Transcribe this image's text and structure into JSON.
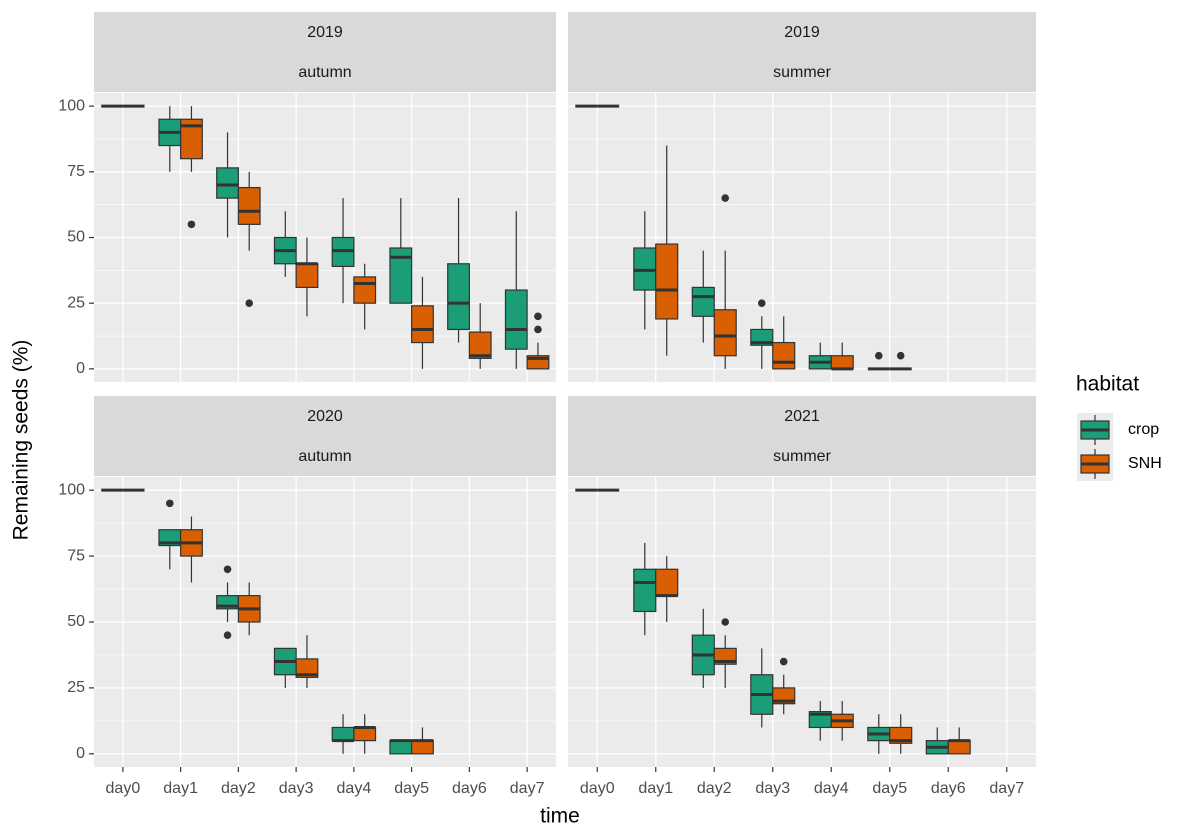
{
  "axis_labels": {
    "x": "time",
    "y": "Remaining seeds (%)"
  },
  "legend": {
    "title": "habitat"
  },
  "chart_data": [
    {
      "type": "box",
      "strip": [
        "2019",
        "autumn"
      ],
      "categories": [
        "day0",
        "day1",
        "day2",
        "day3",
        "day4",
        "day5",
        "day6",
        "day7"
      ],
      "ylim": [
        -5,
        105
      ],
      "yticks": [
        0,
        25,
        50,
        75,
        100
      ],
      "grid": true,
      "minor_grid": true,
      "series": [
        {
          "name": "crop",
          "color": "#1b9e77",
          "boxes": [
            {
              "min": 100,
              "q1": 100,
              "median": 100,
              "q3": 100,
              "max": 100,
              "outliers": []
            },
            {
              "min": 75,
              "q1": 85,
              "median": 90,
              "q3": 95,
              "max": 100,
              "outliers": []
            },
            {
              "min": 50,
              "q1": 65,
              "median": 70,
              "q3": 76.5,
              "max": 90,
              "outliers": []
            },
            {
              "min": 35,
              "q1": 40,
              "median": 45,
              "q3": 50,
              "max": 60,
              "outliers": []
            },
            {
              "min": 25,
              "q1": 39,
              "median": 45,
              "q3": 50,
              "max": 65,
              "outliers": []
            },
            {
              "min": 25,
              "q1": 25,
              "median": 42.5,
              "q3": 46,
              "max": 65,
              "outliers": []
            },
            {
              "min": 10,
              "q1": 15,
              "median": 25,
              "q3": 40,
              "max": 65,
              "outliers": []
            },
            {
              "min": 0,
              "q1": 7.5,
              "median": 15,
              "q3": 30,
              "max": 60,
              "outliers": []
            }
          ]
        },
        {
          "name": "SNH",
          "color": "#d95f02",
          "boxes": [
            {
              "min": 100,
              "q1": 100,
              "median": 100,
              "q3": 100,
              "max": 100,
              "outliers": []
            },
            {
              "min": 75,
              "q1": 80,
              "median": 92.5,
              "q3": 95,
              "max": 100,
              "outliers": [
                55
              ]
            },
            {
              "min": 45,
              "q1": 55,
              "median": 60,
              "q3": 69,
              "max": 75,
              "outliers": [
                25
              ]
            },
            {
              "min": 20,
              "q1": 31,
              "median": 40,
              "q3": 40,
              "max": 50,
              "outliers": []
            },
            {
              "min": 15,
              "q1": 25,
              "median": 32.5,
              "q3": 35,
              "max": 40,
              "outliers": []
            },
            {
              "min": 0,
              "q1": 10,
              "median": 15,
              "q3": 24,
              "max": 35,
              "outliers": []
            },
            {
              "min": 0,
              "q1": 4,
              "median": 5,
              "q3": 14,
              "max": 25,
              "outliers": []
            },
            {
              "min": 0,
              "q1": 0,
              "median": 4,
              "q3": 5,
              "max": 10,
              "outliers": [
                15,
                20
              ]
            }
          ]
        }
      ]
    },
    {
      "type": "box",
      "strip": [
        "2019",
        "summer"
      ],
      "categories": [
        "day0",
        "day1",
        "day2",
        "day3",
        "day4",
        "day5",
        "day6",
        "day7"
      ],
      "ylim": [
        -5,
        105
      ],
      "yticks": [
        0,
        25,
        50,
        75,
        100
      ],
      "grid": true,
      "minor_grid": true,
      "series": [
        {
          "name": "crop",
          "color": "#1b9e77",
          "boxes": [
            {
              "min": 100,
              "q1": 100,
              "median": 100,
              "q3": 100,
              "max": 100,
              "outliers": []
            },
            {
              "min": 15,
              "q1": 30,
              "median": 37.5,
              "q3": 46,
              "max": 60,
              "outliers": []
            },
            {
              "min": 10,
              "q1": 20,
              "median": 27.5,
              "q3": 31,
              "max": 45,
              "outliers": []
            },
            {
              "min": 0,
              "q1": 9,
              "median": 10,
              "q3": 15,
              "max": 20,
              "outliers": [
                25
              ]
            },
            {
              "min": 0,
              "q1": 0,
              "median": 2.5,
              "q3": 5,
              "max": 10,
              "outliers": []
            },
            {
              "min": 0,
              "q1": 0,
              "median": 0,
              "q3": 0,
              "max": 0,
              "outliers": [
                5
              ]
            },
            null,
            null
          ]
        },
        {
          "name": "SNH",
          "color": "#d95f02",
          "boxes": [
            {
              "min": 100,
              "q1": 100,
              "median": 100,
              "q3": 100,
              "max": 100,
              "outliers": []
            },
            {
              "min": 5,
              "q1": 19,
              "median": 30,
              "q3": 47.5,
              "max": 85,
              "outliers": []
            },
            {
              "min": 0,
              "q1": 5,
              "median": 12.5,
              "q3": 22.5,
              "max": 45,
              "outliers": [
                65
              ]
            },
            {
              "min": 0,
              "q1": 0,
              "median": 2.5,
              "q3": 10,
              "max": 20,
              "outliers": []
            },
            {
              "min": 0,
              "q1": 0,
              "median": 0,
              "q3": 5,
              "max": 10,
              "outliers": []
            },
            {
              "min": 0,
              "q1": 0,
              "median": 0,
              "q3": 0,
              "max": 0,
              "outliers": [
                5
              ]
            },
            null,
            null
          ]
        }
      ]
    },
    {
      "type": "box",
      "strip": [
        "2020",
        "autumn"
      ],
      "categories": [
        "day0",
        "day1",
        "day2",
        "day3",
        "day4",
        "day5",
        "day6",
        "day7"
      ],
      "ylim": [
        -5,
        105
      ],
      "yticks": [
        0,
        25,
        50,
        75,
        100
      ],
      "grid": true,
      "minor_grid": true,
      "series": [
        {
          "name": "crop",
          "color": "#1b9e77",
          "boxes": [
            {
              "min": 100,
              "q1": 100,
              "median": 100,
              "q3": 100,
              "max": 100,
              "outliers": []
            },
            {
              "min": 70,
              "q1": 79,
              "median": 80,
              "q3": 85,
              "max": 85,
              "outliers": [
                95
              ]
            },
            {
              "min": 50,
              "q1": 55,
              "median": 56,
              "q3": 60,
              "max": 65,
              "outliers": [
                45,
                70
              ]
            },
            {
              "min": 25,
              "q1": 30,
              "median": 35,
              "q3": 40,
              "max": 40,
              "outliers": []
            },
            {
              "min": 0,
              "q1": 5,
              "median": 5,
              "q3": 10,
              "max": 15,
              "outliers": []
            },
            {
              "min": 0,
              "q1": 0,
              "median": 5,
              "q3": 5,
              "max": 5,
              "outliers": []
            },
            null,
            null
          ]
        },
        {
          "name": "SNH",
          "color": "#d95f02",
          "boxes": [
            {
              "min": 100,
              "q1": 100,
              "median": 100,
              "q3": 100,
              "max": 100,
              "outliers": []
            },
            {
              "min": 65,
              "q1": 75,
              "median": 80,
              "q3": 85,
              "max": 90,
              "outliers": []
            },
            {
              "min": 45,
              "q1": 50,
              "median": 55,
              "q3": 60,
              "max": 65,
              "outliers": []
            },
            {
              "min": 25,
              "q1": 29,
              "median": 30,
              "q3": 36,
              "max": 45,
              "outliers": []
            },
            {
              "min": 0,
              "q1": 5,
              "median": 10,
              "q3": 10,
              "max": 15,
              "outliers": []
            },
            {
              "min": 0,
              "q1": 0,
              "median": 5,
              "q3": 5,
              "max": 10,
              "outliers": []
            },
            null,
            null
          ]
        }
      ]
    },
    {
      "type": "box",
      "strip": [
        "2021",
        "summer"
      ],
      "categories": [
        "day0",
        "day1",
        "day2",
        "day3",
        "day4",
        "day5",
        "day6",
        "day7"
      ],
      "ylim": [
        -5,
        105
      ],
      "yticks": [
        0,
        25,
        50,
        75,
        100
      ],
      "grid": true,
      "minor_grid": true,
      "series": [
        {
          "name": "crop",
          "color": "#1b9e77",
          "boxes": [
            {
              "min": 100,
              "q1": 100,
              "median": 100,
              "q3": 100,
              "max": 100,
              "outliers": []
            },
            {
              "min": 45,
              "q1": 54,
              "median": 65,
              "q3": 70,
              "max": 80,
              "outliers": []
            },
            {
              "min": 25,
              "q1": 30,
              "median": 37.5,
              "q3": 45,
              "max": 55,
              "outliers": []
            },
            {
              "min": 10,
              "q1": 15,
              "median": 22.5,
              "q3": 30,
              "max": 40,
              "outliers": []
            },
            {
              "min": 5,
              "q1": 10,
              "median": 15,
              "q3": 16,
              "max": 20,
              "outliers": []
            },
            {
              "min": 0,
              "q1": 5,
              "median": 7.5,
              "q3": 10,
              "max": 15,
              "outliers": []
            },
            {
              "min": 0,
              "q1": 0,
              "median": 2.5,
              "q3": 5,
              "max": 10,
              "outliers": []
            },
            null
          ]
        },
        {
          "name": "SNH",
          "color": "#d95f02",
          "boxes": [
            {
              "min": 100,
              "q1": 100,
              "median": 100,
              "q3": 100,
              "max": 100,
              "outliers": []
            },
            {
              "min": 50,
              "q1": 60,
              "median": 60,
              "q3": 70,
              "max": 75,
              "outliers": []
            },
            {
              "min": 25,
              "q1": 34,
              "median": 35,
              "q3": 40,
              "max": 45,
              "outliers": [
                50
              ]
            },
            {
              "min": 15,
              "q1": 19,
              "median": 20,
              "q3": 25,
              "max": 30,
              "outliers": [
                35
              ]
            },
            {
              "min": 5,
              "q1": 10,
              "median": 12.5,
              "q3": 15,
              "max": 20,
              "outliers": []
            },
            {
              "min": 0,
              "q1": 4,
              "median": 5,
              "q3": 10,
              "max": 15,
              "outliers": []
            },
            {
              "min": 0,
              "q1": 0,
              "median": 5,
              "q3": 5,
              "max": 10,
              "outliers": []
            },
            null
          ]
        }
      ]
    }
  ]
}
